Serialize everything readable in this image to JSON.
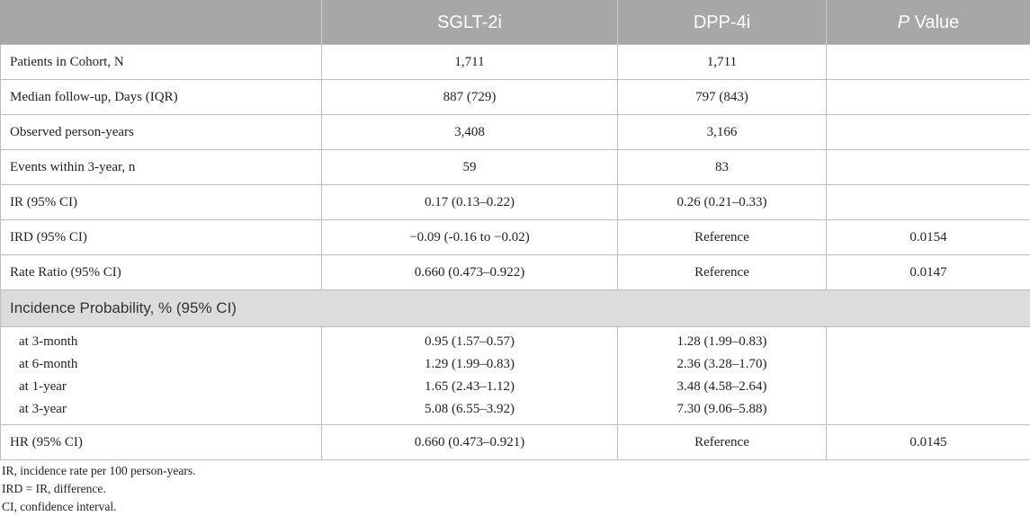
{
  "header": {
    "col0": "",
    "col1": "SGLT-2i",
    "col2": "DPP-4i",
    "col3_italic": "P",
    "col3_rest": " Value"
  },
  "rows": [
    {
      "label": "Patients in Cohort, N",
      "sglt2": "1,711",
      "dpp4": "1,711",
      "p": ""
    },
    {
      "label": "Median follow-up, Days (IQR)",
      "sglt2": "887 (729)",
      "dpp4": "797 (843)",
      "p": ""
    },
    {
      "label": "Observed person-years",
      "sglt2": "3,408",
      "dpp4": "3,166",
      "p": ""
    },
    {
      "label": "Events within 3-year, n",
      "sglt2": "59",
      "dpp4": "83",
      "p": ""
    },
    {
      "label": "IR (95% CI)",
      "sglt2": "0.17 (0.13–0.22)",
      "dpp4": "0.26 (0.21–0.33)",
      "p": ""
    },
    {
      "label": "IRD (95% CI)",
      "sglt2": "−0.09 (-0.16 to −0.02)",
      "dpp4": "Reference",
      "p": "0.0154"
    },
    {
      "label": "Rate Ratio (95% CI)",
      "sglt2": "0.660 (0.473–0.922)",
      "dpp4": "Reference",
      "p": "0.0147"
    }
  ],
  "section": {
    "label": "Incidence Probability, % (95% CI)"
  },
  "incidence": [
    {
      "label": "at 3-month",
      "sglt2": "0.95 (1.57–0.57)",
      "dpp4": "1.28 (1.99–0.83)"
    },
    {
      "label": "at 6-month",
      "sglt2": "1.29 (1.99–0.83)",
      "dpp4": "2.36 (3.28–1.70)"
    },
    {
      "label": "at 1-year",
      "sglt2": "1.65 (2.43–1.12)",
      "dpp4": "3.48 (4.58–2.64)"
    },
    {
      "label": "at 3-year",
      "sglt2": "5.08 (6.55–3.92)",
      "dpp4": "7.30 (9.06–5.88)"
    }
  ],
  "hr_row": {
    "label": "HR (95% CI)",
    "sglt2": "0.660 (0.473–0.921)",
    "dpp4": "Reference",
    "p": "0.0145"
  },
  "footnotes": [
    "IR, incidence rate per 100 person-years.",
    "IRD = IR, difference.",
    "CI, confidence interval."
  ]
}
